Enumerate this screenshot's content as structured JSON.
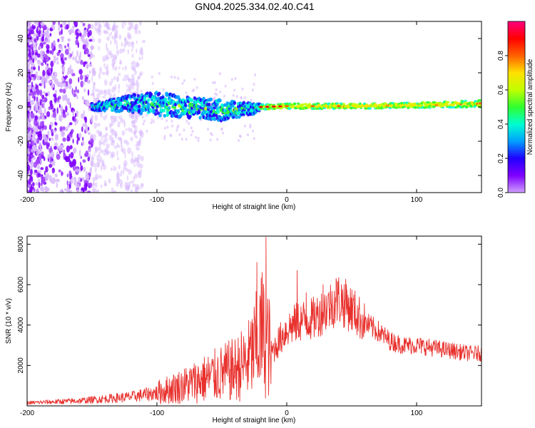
{
  "title": "GN04.2025.334.02.40.C41",
  "chart_data": [
    {
      "type": "heatmap",
      "name": "spectrogram",
      "xlabel": "Height of straight line (km)",
      "ylabel": "Frequency (Hz)",
      "xlim": [
        -200,
        150
      ],
      "ylim": [
        -50,
        50
      ],
      "xticks": [
        -200,
        -100,
        0,
        100
      ],
      "yticks": [
        -40,
        -20,
        0,
        20,
        40
      ],
      "grid": false,
      "colorbar": {
        "label": "Normalized spectral amplitude",
        "range": [
          0,
          1
        ],
        "ticks": [
          "0.0",
          "0.2",
          "0.4",
          "0.6",
          "0.8"
        ],
        "colormap": [
          "#cf9ffd",
          "#7f00ff",
          "#2000ff",
          "#00a0ff",
          "#00ffd0",
          "#30ff30",
          "#c0ff00",
          "#ffe000",
          "#ff6000",
          "#ff0000",
          "#ff0080"
        ]
      },
      "signal_band": [
        {
          "x": -150,
          "center": 0,
          "halfwidth": 2
        },
        {
          "x": -120,
          "center": 2,
          "halfwidth": 5
        },
        {
          "x": -100,
          "center": 2,
          "halfwidth": 7
        },
        {
          "x": -80,
          "center": 0,
          "halfwidth": 6
        },
        {
          "x": -50,
          "center": -2,
          "halfwidth": 6
        },
        {
          "x": -25,
          "center": -1,
          "halfwidth": 3
        },
        {
          "x": -20,
          "center": 0,
          "halfwidth": 1.5
        },
        {
          "x": 0,
          "center": 0.5,
          "halfwidth": 1.5
        },
        {
          "x": 50,
          "center": 0.5,
          "halfwidth": 1.5
        },
        {
          "x": 100,
          "center": 1,
          "halfwidth": 1.5
        },
        {
          "x": 150,
          "center": 2,
          "halfwidth": 2
        }
      ]
    },
    {
      "type": "line",
      "name": "snr",
      "xlabel": "Height of straight line (km)",
      "ylabel": "SNR (10 * v/v)",
      "xlim": [
        -200,
        150
      ],
      "ylim": [
        0,
        8400
      ],
      "xticks": [
        -200,
        -100,
        0,
        100
      ],
      "yticks": [
        2000,
        4000,
        6000,
        8000
      ],
      "grid": false,
      "color": "#e8312d",
      "envelope": [
        {
          "x": -200,
          "y": 150
        },
        {
          "x": -180,
          "y": 200
        },
        {
          "x": -160,
          "y": 250
        },
        {
          "x": -140,
          "y": 350
        },
        {
          "x": -120,
          "y": 450
        },
        {
          "x": -100,
          "y": 650
        },
        {
          "x": -80,
          "y": 1000
        },
        {
          "x": -60,
          "y": 1400
        },
        {
          "x": -40,
          "y": 1800
        },
        {
          "x": -30,
          "y": 2200
        },
        {
          "x": -25,
          "y": 2800
        },
        {
          "x": -20,
          "y": 3500
        },
        {
          "x": -15,
          "y": 3200
        },
        {
          "x": -12,
          "y": 2600
        },
        {
          "x": 0,
          "y": 3800
        },
        {
          "x": 10,
          "y": 4200
        },
        {
          "x": 20,
          "y": 4300
        },
        {
          "x": 30,
          "y": 4800
        },
        {
          "x": 40,
          "y": 5300
        },
        {
          "x": 50,
          "y": 4800
        },
        {
          "x": 60,
          "y": 4100
        },
        {
          "x": 70,
          "y": 3700
        },
        {
          "x": 80,
          "y": 3200
        },
        {
          "x": 90,
          "y": 3000
        },
        {
          "x": 100,
          "y": 3000
        },
        {
          "x": 120,
          "y": 2800
        },
        {
          "x": 140,
          "y": 2600
        },
        {
          "x": 150,
          "y": 2600
        }
      ],
      "peaks": [
        {
          "x": -16,
          "y": 8350
        },
        {
          "x": -23,
          "y": 7100
        },
        {
          "x": -19,
          "y": 6600
        },
        {
          "x": 8,
          "y": 6700
        },
        {
          "x": 38,
          "y": 6300
        },
        {
          "x": 46,
          "y": 6000
        },
        {
          "x": 28,
          "y": 6000
        },
        {
          "x": 15,
          "y": 5600
        }
      ]
    }
  ]
}
